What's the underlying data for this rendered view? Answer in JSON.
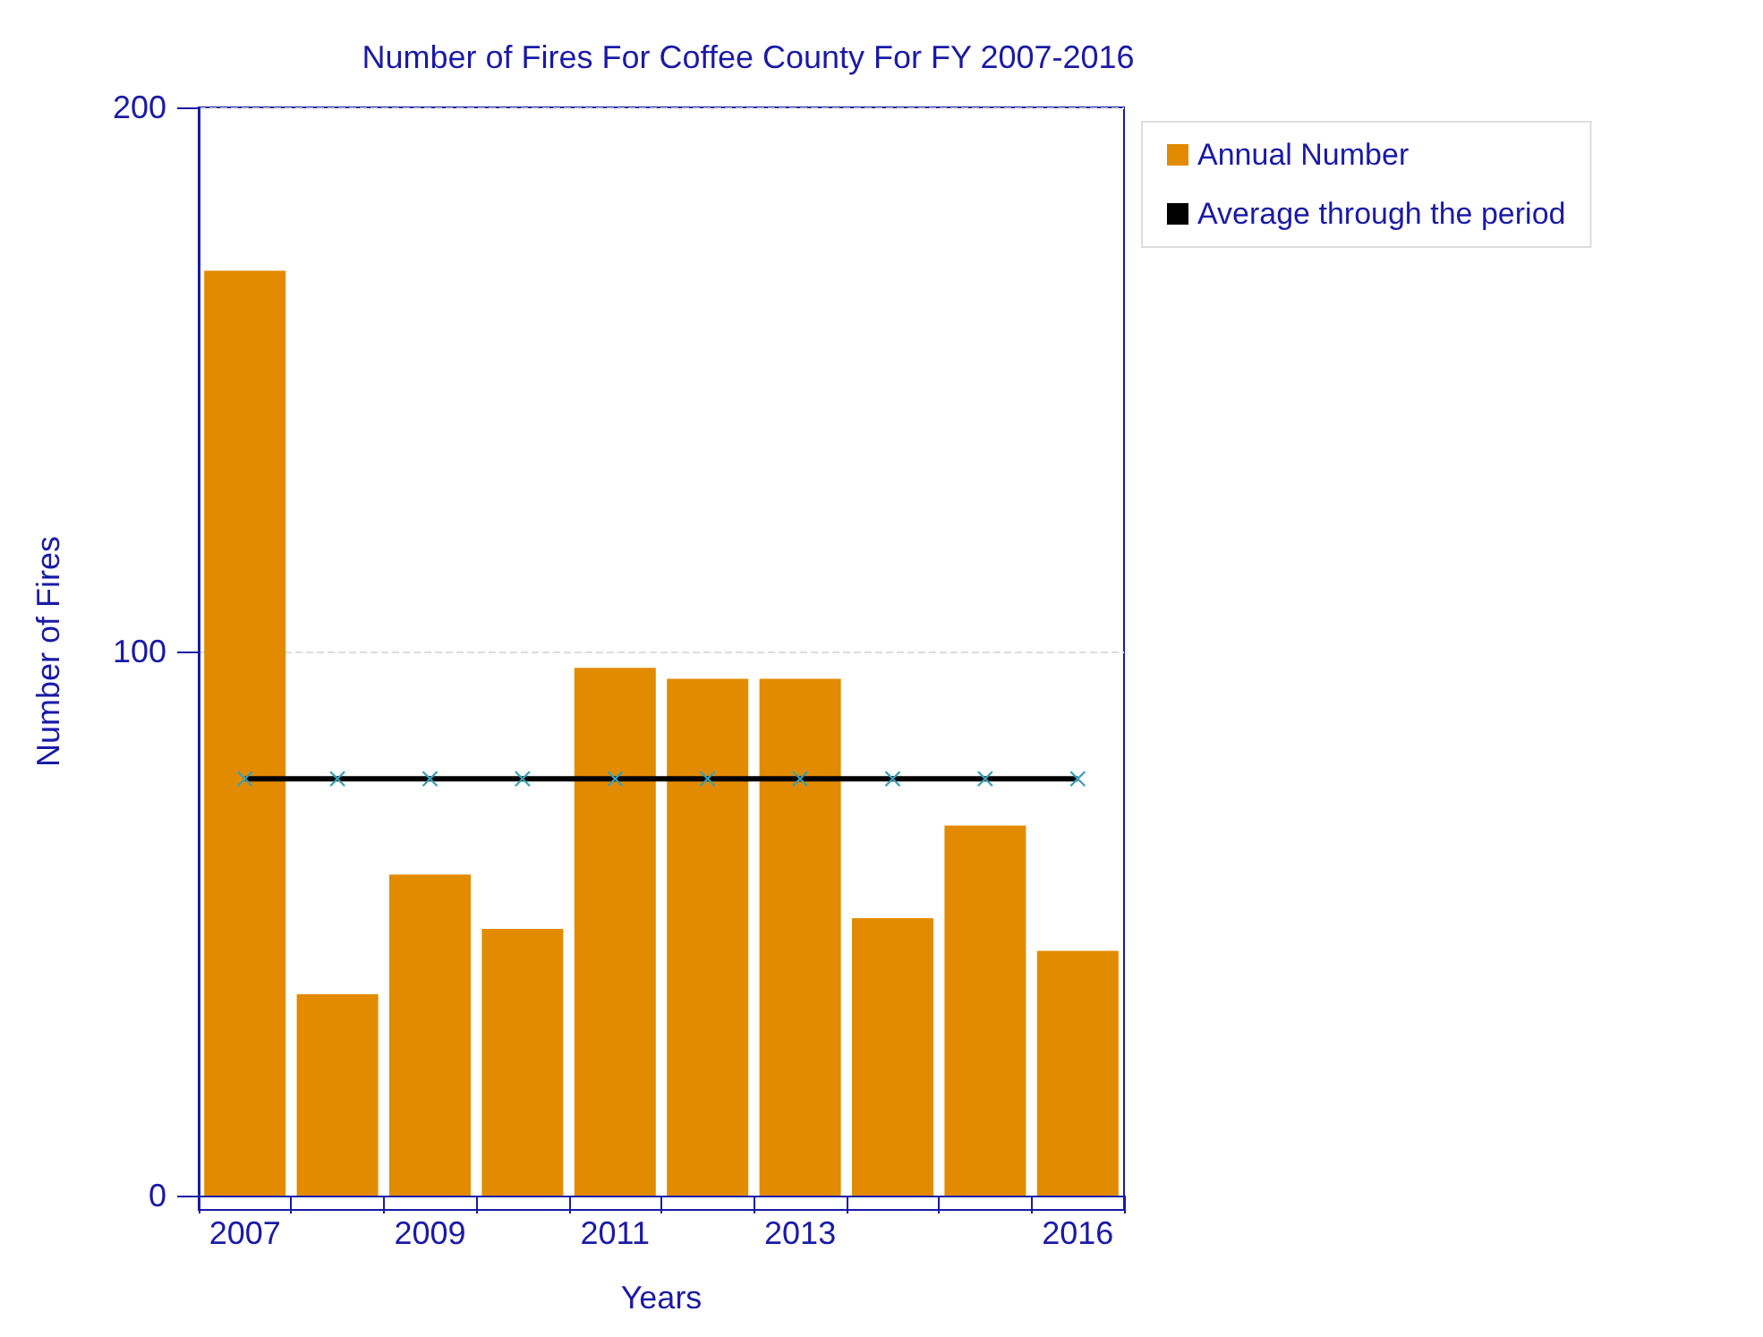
{
  "chart_data": {
    "type": "bar",
    "title": "Number of Fires For Coffee County For FY 2007-2016",
    "xlabel": "Years",
    "ylabel": "Number of Fires",
    "categories": [
      "2007",
      null,
      "2009",
      null,
      "2011",
      null,
      "2013",
      null,
      null,
      "2016"
    ],
    "series": [
      {
        "name": "Annual Number",
        "color": "#e38b00",
        "values": [
          170,
          37,
          59,
          49,
          97,
          95,
          95,
          51,
          68,
          45
        ]
      },
      {
        "name": "Average through the period",
        "type": "line",
        "color": "#000000",
        "marker": "cross",
        "values": [
          76.6,
          76.6,
          76.6,
          76.6,
          76.6,
          76.6,
          76.6,
          76.6,
          76.6,
          76.6
        ]
      }
    ],
    "ylim": [
      0,
      200
    ],
    "yticks": [
      0,
      100,
      200
    ],
    "grid": "y",
    "legend": "top right"
  }
}
